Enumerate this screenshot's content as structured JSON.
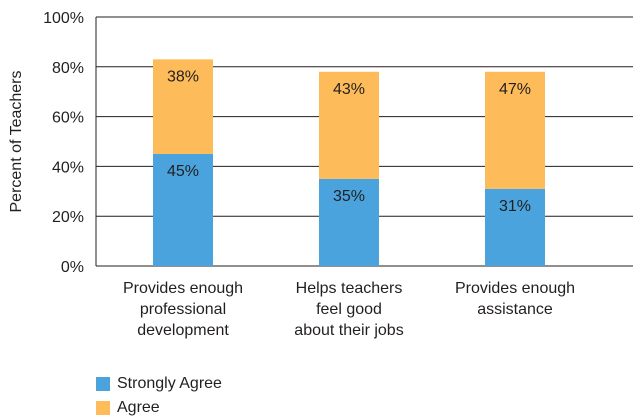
{
  "chart_data": {
    "type": "bar",
    "stacked": true,
    "categories": [
      [
        "Provides enough",
        "professional",
        "development"
      ],
      [
        "Helps teachers",
        "feel good",
        "about their jobs"
      ],
      [
        "Provides enough",
        "assistance"
      ]
    ],
    "series": [
      {
        "name": "Strongly Agree",
        "color": "#4aa3dd",
        "values": [
          45,
          35,
          31
        ],
        "labels": [
          "45%",
          "35%",
          "31%"
        ]
      },
      {
        "name": "Agree",
        "color": "#fdbb5a",
        "values": [
          38,
          43,
          47
        ],
        "labels": [
          "38%",
          "43%",
          "47%"
        ]
      }
    ],
    "ylabel": "Percent of Teachers",
    "ylim": [
      0,
      100
    ],
    "yticks": [
      0,
      20,
      40,
      60,
      80,
      100
    ],
    "ytick_labels": [
      "0%",
      "20%",
      "40%",
      "60%",
      "80%",
      "100%"
    ],
    "grid": true,
    "legend_position": "bottom-left"
  }
}
